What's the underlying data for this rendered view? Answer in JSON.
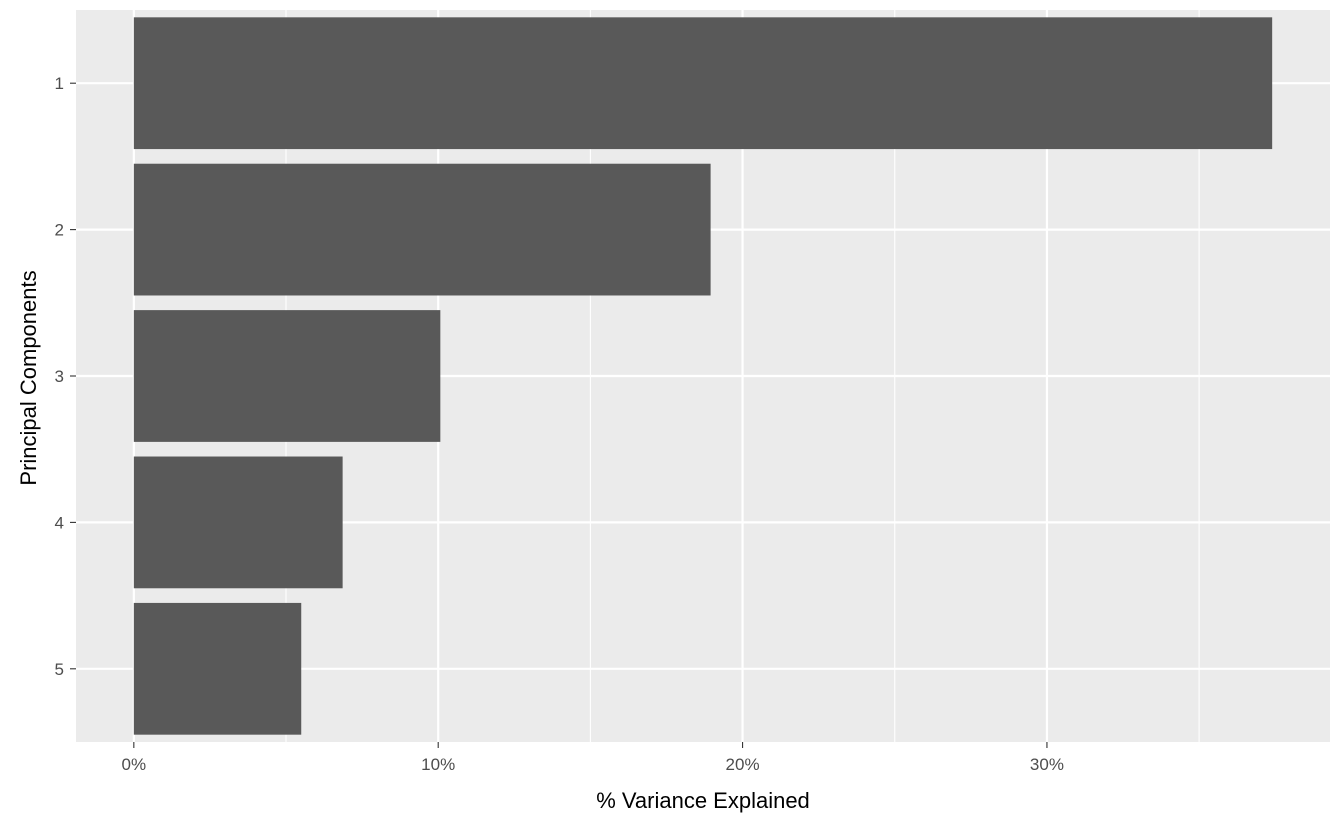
{
  "chart_data": {
    "type": "bar",
    "orientation": "horizontal",
    "categories": [
      "1",
      "2",
      "3",
      "4",
      "5"
    ],
    "values": [
      37.4,
      18.95,
      10.07,
      6.86,
      5.5
    ],
    "xlabel": "% Variance Explained",
    "ylabel": "Principal Components",
    "xlim": [
      -1.9,
      39.3
    ],
    "xticks": [
      0,
      10,
      20,
      30
    ],
    "xtick_labels": [
      "0%",
      "10%",
      "20%",
      "30%"
    ],
    "grid": true,
    "colors": {
      "bar": "#595959",
      "panel": "#ebebeb",
      "grid": "#ffffff"
    }
  }
}
